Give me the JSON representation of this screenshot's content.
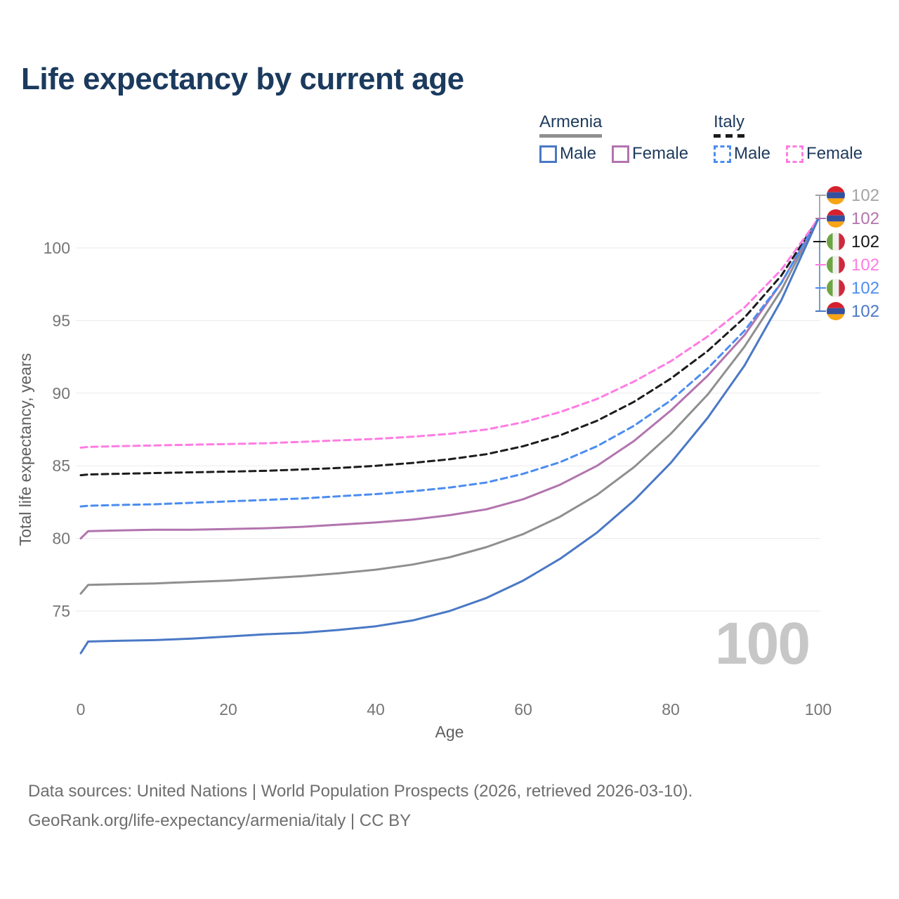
{
  "header": {
    "title": "Life expectancy by current age"
  },
  "legend": {
    "groups": [
      {
        "label": "Armenia",
        "line_style": "solid",
        "items": [
          {
            "label": "Male"
          },
          {
            "label": "Female"
          }
        ]
      },
      {
        "label": "Italy",
        "line_style": "dashed",
        "items": [
          {
            "label": "Male"
          },
          {
            "label": "Female"
          }
        ]
      }
    ]
  },
  "chart_data": {
    "type": "line",
    "title": "Life expectancy by current age",
    "xlabel": "Age",
    "ylabel": "Total life expectancy, years",
    "x_ticks": [
      0,
      20,
      40,
      60,
      80,
      100
    ],
    "y_ticks": [
      75,
      80,
      85,
      90,
      95,
      100
    ],
    "xlim": [
      0,
      100
    ],
    "ylim": [
      72,
      103
    ],
    "grid": "horizontal-only",
    "legend_position": "top-right",
    "watermark": "100",
    "series": [
      {
        "id": "armenia-all",
        "name": "Armenia — All",
        "country": "Armenia",
        "sex": "All",
        "style": "solid",
        "dashed": false,
        "color": "#8f8f8f",
        "points": [
          [
            0,
            76.2
          ],
          [
            1,
            76.8
          ],
          [
            5,
            76.85
          ],
          [
            10,
            76.9
          ],
          [
            15,
            77.0
          ],
          [
            20,
            77.1
          ],
          [
            25,
            77.25
          ],
          [
            30,
            77.4
          ],
          [
            35,
            77.6
          ],
          [
            40,
            77.85
          ],
          [
            45,
            78.2
          ],
          [
            50,
            78.7
          ],
          [
            55,
            79.4
          ],
          [
            60,
            80.3
          ],
          [
            65,
            81.5
          ],
          [
            70,
            83.0
          ],
          [
            75,
            84.9
          ],
          [
            80,
            87.2
          ],
          [
            85,
            89.9
          ],
          [
            90,
            93.2
          ],
          [
            95,
            97.1
          ],
          [
            100,
            102
          ]
        ]
      },
      {
        "id": "armenia-female",
        "name": "Armenia — Female",
        "country": "Armenia",
        "sex": "Female",
        "style": "solid",
        "dashed": false,
        "color": "#b274ae",
        "points": [
          [
            0,
            80.0
          ],
          [
            1,
            80.5
          ],
          [
            5,
            80.55
          ],
          [
            10,
            80.6
          ],
          [
            15,
            80.6
          ],
          [
            20,
            80.65
          ],
          [
            25,
            80.7
          ],
          [
            30,
            80.8
          ],
          [
            35,
            80.95
          ],
          [
            40,
            81.1
          ],
          [
            45,
            81.3
          ],
          [
            50,
            81.6
          ],
          [
            55,
            82.0
          ],
          [
            60,
            82.7
          ],
          [
            65,
            83.7
          ],
          [
            70,
            85.0
          ],
          [
            75,
            86.7
          ],
          [
            80,
            88.8
          ],
          [
            85,
            91.2
          ],
          [
            90,
            94.0
          ],
          [
            95,
            97.6
          ],
          [
            100,
            102
          ]
        ]
      },
      {
        "id": "italy-all",
        "name": "Italy — All",
        "country": "Italy",
        "sex": "All",
        "style": "dashed",
        "dashed": true,
        "color": "#1c1c1c",
        "points": [
          [
            0,
            84.35
          ],
          [
            1,
            84.4
          ],
          [
            5,
            84.45
          ],
          [
            10,
            84.5
          ],
          [
            15,
            84.55
          ],
          [
            20,
            84.6
          ],
          [
            25,
            84.65
          ],
          [
            30,
            84.75
          ],
          [
            35,
            84.85
          ],
          [
            40,
            85.0
          ],
          [
            45,
            85.2
          ],
          [
            50,
            85.45
          ],
          [
            55,
            85.8
          ],
          [
            60,
            86.35
          ],
          [
            65,
            87.1
          ],
          [
            70,
            88.1
          ],
          [
            75,
            89.4
          ],
          [
            80,
            91.0
          ],
          [
            85,
            92.9
          ],
          [
            90,
            95.2
          ],
          [
            95,
            98.1
          ],
          [
            100,
            102
          ]
        ]
      },
      {
        "id": "italy-male",
        "name": "Italy — Male",
        "country": "Italy",
        "sex": "Male",
        "style": "dashed",
        "dashed": true,
        "color": "#4b8df0",
        "points": [
          [
            0,
            82.2
          ],
          [
            1,
            82.25
          ],
          [
            5,
            82.3
          ],
          [
            10,
            82.35
          ],
          [
            15,
            82.45
          ],
          [
            20,
            82.55
          ],
          [
            25,
            82.65
          ],
          [
            30,
            82.75
          ],
          [
            35,
            82.9
          ],
          [
            40,
            83.05
          ],
          [
            45,
            83.25
          ],
          [
            50,
            83.5
          ],
          [
            55,
            83.85
          ],
          [
            60,
            84.45
          ],
          [
            65,
            85.25
          ],
          [
            70,
            86.35
          ],
          [
            75,
            87.75
          ],
          [
            80,
            89.5
          ],
          [
            85,
            91.7
          ],
          [
            90,
            94.3
          ],
          [
            95,
            97.6
          ],
          [
            100,
            102
          ]
        ]
      },
      {
        "id": "italy-female",
        "name": "Italy — Female",
        "country": "Italy",
        "sex": "Female",
        "style": "dashed",
        "dashed": true,
        "color": "#ff7ce3",
        "points": [
          [
            0,
            86.25
          ],
          [
            1,
            86.3
          ],
          [
            5,
            86.35
          ],
          [
            10,
            86.4
          ],
          [
            15,
            86.45
          ],
          [
            20,
            86.5
          ],
          [
            25,
            86.55
          ],
          [
            30,
            86.65
          ],
          [
            35,
            86.75
          ],
          [
            40,
            86.85
          ],
          [
            45,
            87.0
          ],
          [
            50,
            87.2
          ],
          [
            55,
            87.5
          ],
          [
            60,
            88.0
          ],
          [
            65,
            88.7
          ],
          [
            70,
            89.6
          ],
          [
            75,
            90.8
          ],
          [
            80,
            92.2
          ],
          [
            85,
            93.9
          ],
          [
            90,
            95.9
          ],
          [
            95,
            98.5
          ],
          [
            100,
            102
          ]
        ]
      },
      {
        "id": "armenia-male",
        "name": "Armenia — Male",
        "country": "Armenia",
        "sex": "Male",
        "style": "solid",
        "dashed": false,
        "color": "#4a78c5",
        "points": [
          [
            0,
            72.1
          ],
          [
            1,
            72.9
          ],
          [
            5,
            72.95
          ],
          [
            10,
            73.0
          ],
          [
            15,
            73.1
          ],
          [
            20,
            73.25
          ],
          [
            25,
            73.4
          ],
          [
            30,
            73.5
          ],
          [
            35,
            73.7
          ],
          [
            40,
            73.95
          ],
          [
            45,
            74.35
          ],
          [
            50,
            75.0
          ],
          [
            55,
            75.9
          ],
          [
            60,
            77.1
          ],
          [
            65,
            78.6
          ],
          [
            70,
            80.4
          ],
          [
            75,
            82.6
          ],
          [
            80,
            85.2
          ],
          [
            85,
            88.3
          ],
          [
            90,
            91.9
          ],
          [
            95,
            96.4
          ],
          [
            100,
            102
          ]
        ]
      }
    ],
    "end_labels": [
      {
        "flag": "#flag-armenia",
        "country": "Armenia",
        "series": "Armenia — All",
        "value": "102",
        "color": "#a3a3a3"
      },
      {
        "flag": "#flag-armenia",
        "country": "Armenia",
        "series": "Armenia — Female",
        "value": "102",
        "color": "#b274ae"
      },
      {
        "flag": "#flag-italy",
        "country": "Italy",
        "series": "Italy — All",
        "value": "102",
        "color": "#161616"
      },
      {
        "flag": "#flag-italy",
        "country": "Italy",
        "series": "Italy — Female",
        "value": "102",
        "color": "#ff7ce3"
      },
      {
        "flag": "#flag-italy",
        "country": "Italy",
        "series": "Italy — Male",
        "value": "102",
        "color": "#4b8df0"
      },
      {
        "flag": "#flag-armenia",
        "country": "Armenia",
        "series": "Armenia — Male",
        "value": "102",
        "color": "#4a78c5"
      }
    ]
  },
  "footer": {
    "line1": "Data sources: United Nations | World Population Prospects (2026, retrieved 2026-03-10).",
    "line2": "GeoRank.org/life-expectancy/armenia/italy | CC BY"
  }
}
